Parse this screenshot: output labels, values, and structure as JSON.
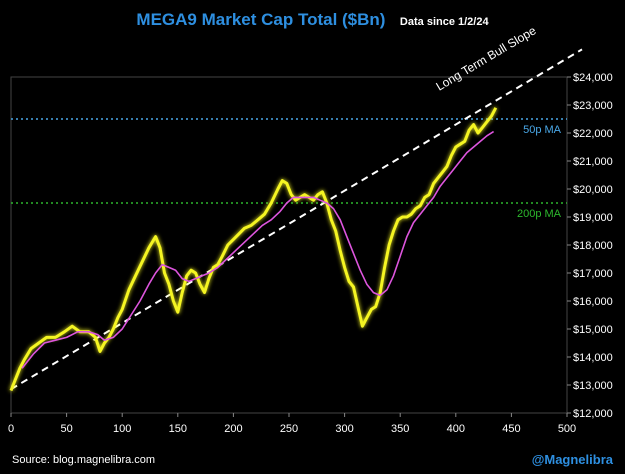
{
  "chart_data": {
    "type": "line",
    "title": "MEGA9 Market Cap Total ($Bn)",
    "subtitle": "Data since 1/2/24",
    "xlim": [
      0,
      500
    ],
    "ylim": [
      12000,
      24000
    ],
    "x_ticks": [
      0,
      50,
      100,
      150,
      200,
      250,
      300,
      350,
      400,
      450,
      500
    ],
    "y_ticks": [
      12000,
      13000,
      14000,
      15000,
      16000,
      17000,
      18000,
      19000,
      20000,
      21000,
      22000,
      23000,
      24000
    ],
    "y_tick_labels": [
      "$12,000",
      "$13,000",
      "$14,000",
      "$15,000",
      "$16,000",
      "$17,000",
      "$18,000",
      "$19,000",
      "$20,000",
      "$21,000",
      "$22,000",
      "$23,000",
      "$24,000"
    ],
    "series": [
      {
        "name": "MEGA9 Market Cap",
        "color": "#f5f520",
        "points": [
          [
            0,
            12800
          ],
          [
            3,
            13100
          ],
          [
            8,
            13600
          ],
          [
            12,
            13900
          ],
          [
            18,
            14300
          ],
          [
            25,
            14500
          ],
          [
            32,
            14700
          ],
          [
            40,
            14700
          ],
          [
            48,
            14900
          ],
          [
            55,
            15100
          ],
          [
            62,
            14900
          ],
          [
            70,
            14900
          ],
          [
            76,
            14700
          ],
          [
            80,
            14200
          ],
          [
            84,
            14500
          ],
          [
            88,
            14700
          ],
          [
            92,
            15000
          ],
          [
            96,
            15400
          ],
          [
            100,
            15700
          ],
          [
            106,
            16400
          ],
          [
            112,
            16900
          ],
          [
            118,
            17400
          ],
          [
            124,
            17900
          ],
          [
            130,
            18300
          ],
          [
            134,
            17900
          ],
          [
            138,
            17000
          ],
          [
            142,
            16600
          ],
          [
            146,
            16000
          ],
          [
            150,
            15600
          ],
          [
            154,
            16300
          ],
          [
            158,
            16900
          ],
          [
            162,
            17100
          ],
          [
            166,
            17000
          ],
          [
            170,
            16600
          ],
          [
            174,
            16300
          ],
          [
            178,
            16800
          ],
          [
            182,
            17200
          ],
          [
            186,
            17300
          ],
          [
            190,
            17600
          ],
          [
            195,
            18000
          ],
          [
            200,
            18200
          ],
          [
            205,
            18400
          ],
          [
            210,
            18600
          ],
          [
            216,
            18700
          ],
          [
            222,
            18900
          ],
          [
            228,
            19100
          ],
          [
            234,
            19500
          ],
          [
            240,
            20000
          ],
          [
            244,
            20300
          ],
          [
            248,
            20200
          ],
          [
            252,
            19800
          ],
          [
            256,
            19600
          ],
          [
            260,
            19700
          ],
          [
            264,
            19800
          ],
          [
            268,
            19700
          ],
          [
            272,
            19600
          ],
          [
            276,
            19800
          ],
          [
            280,
            19900
          ],
          [
            284,
            19500
          ],
          [
            288,
            18900
          ],
          [
            292,
            18500
          ],
          [
            296,
            17800
          ],
          [
            300,
            17200
          ],
          [
            304,
            16700
          ],
          [
            308,
            16500
          ],
          [
            312,
            15800
          ],
          [
            316,
            15100
          ],
          [
            320,
            15400
          ],
          [
            324,
            15700
          ],
          [
            328,
            15800
          ],
          [
            332,
            16300
          ],
          [
            336,
            17200
          ],
          [
            340,
            18000
          ],
          [
            344,
            18500
          ],
          [
            348,
            18900
          ],
          [
            352,
            19000
          ],
          [
            356,
            19000
          ],
          [
            360,
            19100
          ],
          [
            364,
            19300
          ],
          [
            368,
            19400
          ],
          [
            372,
            19700
          ],
          [
            376,
            19800
          ],
          [
            380,
            20200
          ],
          [
            384,
            20400
          ],
          [
            388,
            20600
          ],
          [
            392,
            20800
          ],
          [
            396,
            21200
          ],
          [
            400,
            21500
          ],
          [
            404,
            21600
          ],
          [
            408,
            21700
          ],
          [
            412,
            22100
          ],
          [
            416,
            22300
          ],
          [
            420,
            22000
          ],
          [
            424,
            22200
          ],
          [
            428,
            22400
          ],
          [
            432,
            22600
          ],
          [
            436,
            22900
          ]
        ]
      },
      {
        "name": "50p MA",
        "color": "#dd55dd",
        "points": [
          [
            10,
            13600
          ],
          [
            20,
            14100
          ],
          [
            30,
            14500
          ],
          [
            40,
            14600
          ],
          [
            50,
            14700
          ],
          [
            60,
            14900
          ],
          [
            70,
            14900
          ],
          [
            78,
            14800
          ],
          [
            84,
            14600
          ],
          [
            92,
            14700
          ],
          [
            100,
            15000
          ],
          [
            108,
            15500
          ],
          [
            116,
            16000
          ],
          [
            124,
            16600
          ],
          [
            130,
            17000
          ],
          [
            136,
            17300
          ],
          [
            142,
            17200
          ],
          [
            148,
            17100
          ],
          [
            154,
            16800
          ],
          [
            160,
            16700
          ],
          [
            166,
            16800
          ],
          [
            172,
            16900
          ],
          [
            178,
            17000
          ],
          [
            186,
            17200
          ],
          [
            194,
            17500
          ],
          [
            202,
            17800
          ],
          [
            210,
            18100
          ],
          [
            218,
            18400
          ],
          [
            226,
            18700
          ],
          [
            234,
            18900
          ],
          [
            242,
            19200
          ],
          [
            248,
            19500
          ],
          [
            254,
            19700
          ],
          [
            260,
            19700
          ],
          [
            266,
            19700
          ],
          [
            272,
            19700
          ],
          [
            278,
            19600
          ],
          [
            284,
            19500
          ],
          [
            290,
            19300
          ],
          [
            296,
            18900
          ],
          [
            302,
            18300
          ],
          [
            308,
            17700
          ],
          [
            314,
            17100
          ],
          [
            320,
            16600
          ],
          [
            326,
            16300
          ],
          [
            332,
            16200
          ],
          [
            338,
            16400
          ],
          [
            344,
            16900
          ],
          [
            350,
            17600
          ],
          [
            356,
            18300
          ],
          [
            362,
            18800
          ],
          [
            368,
            19100
          ],
          [
            374,
            19400
          ],
          [
            380,
            19700
          ],
          [
            386,
            20100
          ],
          [
            392,
            20400
          ],
          [
            398,
            20700
          ],
          [
            404,
            21000
          ],
          [
            410,
            21300
          ],
          [
            416,
            21500
          ],
          [
            422,
            21700
          ],
          [
            428,
            21900
          ],
          [
            434,
            22050
          ]
        ]
      }
    ],
    "reference_lines": [
      {
        "label": "50p MA",
        "y": 22500,
        "color": "#4aa8e8"
      },
      {
        "label": "200p MA",
        "y": 19500,
        "color": "#2db82d"
      }
    ],
    "trend_line": {
      "label": "Long Term Bull Slope",
      "from": [
        0,
        12850
      ],
      "to": [
        500,
        24700
      ],
      "color": "#ffffff"
    }
  },
  "footer": {
    "source": "Source: blog.magnelibra.com",
    "handle": "@Magnelibra"
  }
}
